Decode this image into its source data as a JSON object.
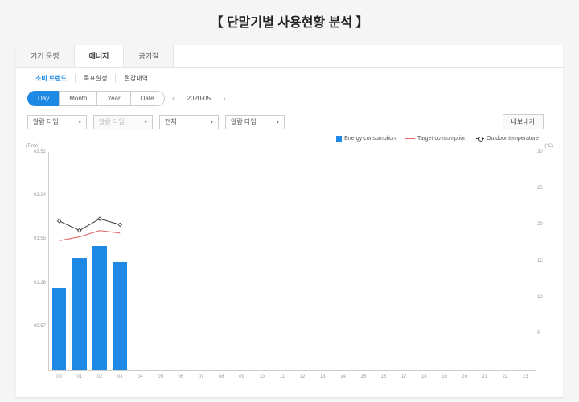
{
  "page": {
    "title": "【 단말기별 사용현황 분석 】"
  },
  "tabs_main": {
    "items": [
      "기기 운영",
      "에너지",
      "공기질"
    ],
    "active_index": 1
  },
  "sub_tabs": {
    "items": [
      "소비 트렌드",
      "목표설정",
      "절감내역"
    ],
    "active_index": 0
  },
  "segment": {
    "items": [
      "Day",
      "Month",
      "Year",
      "Date"
    ],
    "active_index": 0
  },
  "date_nav": {
    "prev": "‹",
    "label": "2020-05",
    "next": "›"
  },
  "filters": {
    "f1": {
      "label": "알람 타입",
      "disabled": false
    },
    "f2": {
      "label": "알람 타입",
      "disabled": true
    },
    "f3": {
      "label": "전체",
      "disabled": false
    },
    "f4": {
      "label": "알람 타입",
      "disabled": false
    },
    "export_label": "내보내기"
  },
  "legend": {
    "energy": {
      "label": "Energy consumption",
      "color": "#1e88e5"
    },
    "target": {
      "label": "Target consumption",
      "color": "#e26a6a"
    },
    "outdoor": {
      "label": "Outdoor temperature",
      "color": "#333333"
    }
  },
  "chart": {
    "type": "combo-bar-line",
    "y_left": {
      "label": "(Time)",
      "ticks": [
        "02:52",
        "02:24",
        "01:55",
        "01:26",
        "00:57"
      ],
      "min_minutes": 0,
      "max_minutes": 172
    },
    "y_right": {
      "label": "(°C)",
      "ticks": [
        30,
        25,
        20,
        15,
        10,
        5
      ],
      "min": 0,
      "max": 30
    },
    "x": {
      "categories": [
        "00",
        "01",
        "02",
        "03",
        "04",
        "05",
        "06",
        "07",
        "08",
        "09",
        "10",
        "11",
        "12",
        "13",
        "14",
        "15",
        "16",
        "17",
        "18",
        "19",
        "20",
        "21",
        "22",
        "23"
      ]
    },
    "bars": {
      "color": "#1e88e5",
      "width_frac": 0.7,
      "values_minutes": [
        65,
        88,
        98,
        85
      ]
    },
    "line_target": {
      "color": "#e26a6a",
      "values_minutes": [
        102,
        105,
        110,
        108
      ]
    },
    "line_outdoor": {
      "color": "#333333",
      "marker": "diamond",
      "values_c": [
        20.5,
        19.2,
        20.8,
        20.0
      ]
    },
    "background_color": "#ffffff",
    "axis_color": "#cccccc",
    "tick_color": "#999999",
    "tick_fontsize": 6
  }
}
